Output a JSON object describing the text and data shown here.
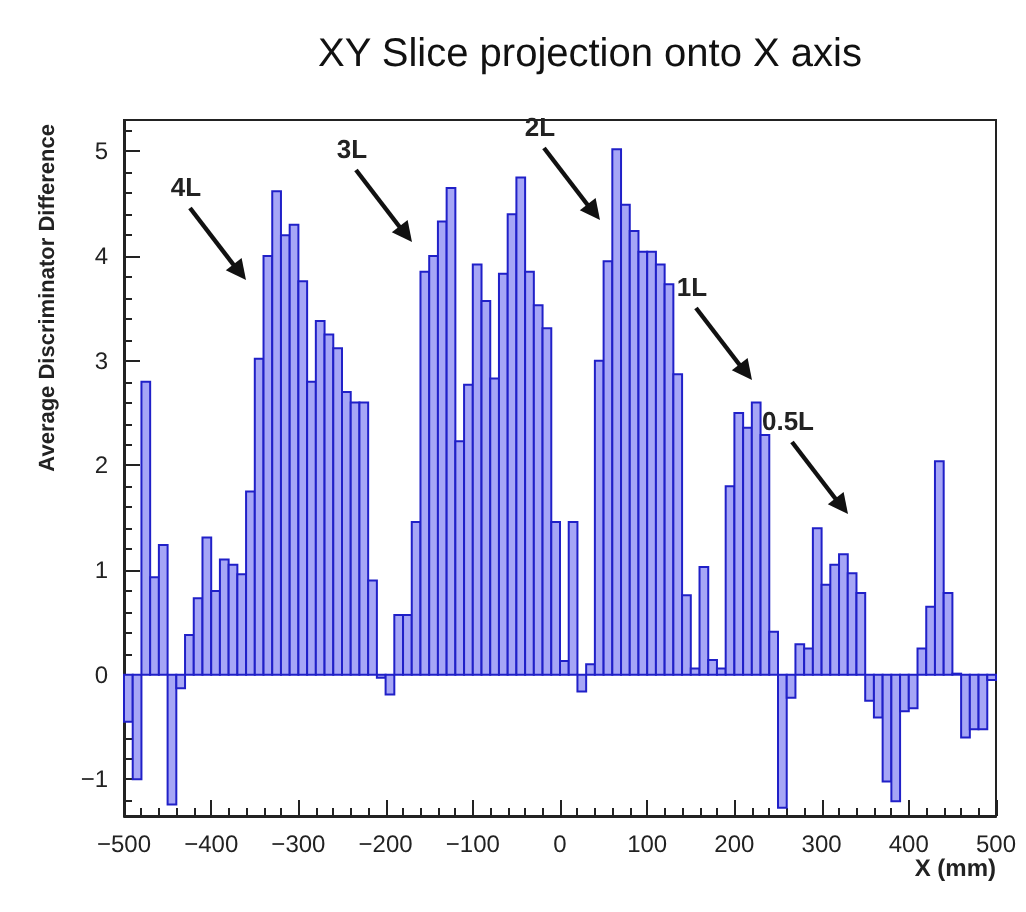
{
  "chart_data": {
    "type": "histogram",
    "title": "XY Slice projection onto X axis",
    "xlabel": "X (mm)",
    "ylabel": "Average Discriminator Difference",
    "color": "#a6a6f6",
    "bins": [
      -500,
      -490,
      -480,
      -470,
      -460,
      -450,
      -440,
      -430,
      -420,
      -410,
      -400,
      -390,
      -380,
      -370,
      -360,
      -350,
      -340,
      -330,
      -320,
      -310,
      -300,
      -290,
      -280,
      -270,
      -260,
      -250,
      -240,
      -230,
      -220,
      -210,
      -200,
      -190,
      -180,
      -170,
      -160,
      -150,
      -140,
      -130,
      -120,
      -110,
      -100,
      -90,
      -80,
      -70,
      -60,
      -50,
      -40,
      -30,
      -20,
      -10,
      0,
      10,
      20,
      30,
      40,
      50,
      60,
      70,
      80,
      90,
      100,
      110,
      120,
      130,
      140,
      150,
      160,
      170,
      180,
      190,
      200,
      210,
      220,
      230,
      240,
      250,
      260,
      270,
      280,
      290,
      300,
      310,
      320,
      330,
      340,
      350,
      360,
      370,
      380,
      390,
      400,
      410,
      420,
      430,
      440,
      450,
      460,
      470,
      480,
      490,
      500
    ],
    "values": [
      -0.45,
      -1.0,
      2.8,
      0.93,
      1.24,
      -1.24,
      -0.13,
      0.38,
      0.73,
      1.31,
      0.8,
      1.1,
      1.05,
      0.96,
      1.75,
      3.02,
      4.0,
      4.62,
      4.2,
      4.3,
      3.76,
      2.8,
      3.38,
      3.25,
      3.12,
      2.7,
      2.6,
      2.6,
      0.9,
      -0.03,
      -0.19,
      0.57,
      0.57,
      1.46,
      3.85,
      4.0,
      4.33,
      4.65,
      2.23,
      2.77,
      3.92,
      3.57,
      2.83,
      3.83,
      4.4,
      4.75,
      3.85,
      3.53,
      3.31,
      1.46,
      0.13,
      1.46,
      -0.16,
      0.1,
      3.0,
      3.95,
      5.02,
      4.49,
      4.24,
      4.04,
      4.04,
      3.92,
      3.73,
      2.87,
      0.76,
      0.06,
      1.03,
      0.14,
      0.06,
      1.8,
      2.5,
      2.36,
      2.6,
      2.29,
      0.41,
      -1.27,
      -0.22,
      0.29,
      0.25,
      1.4,
      0.86,
      1.05,
      1.15,
      0.97,
      0.78,
      -0.25,
      -0.41,
      -1.02,
      -1.21,
      -0.35,
      -0.32,
      0.25,
      0.65,
      2.04,
      0.78,
      0.01,
      -0.6,
      -0.52,
      -0.52,
      -0.05
    ],
    "xlim": [
      -500,
      500
    ],
    "xticks": [
      -500,
      -400,
      -300,
      -200,
      -100,
      0,
      100,
      200,
      300,
      400,
      500
    ],
    "ylim": [
      -1.35,
      5.3
    ],
    "yticks": [
      -1,
      0,
      1,
      2,
      3,
      4,
      5
    ],
    "grid": false,
    "annotations": [
      "4L",
      "3L",
      "2L",
      "1L",
      "0.5L"
    ]
  }
}
